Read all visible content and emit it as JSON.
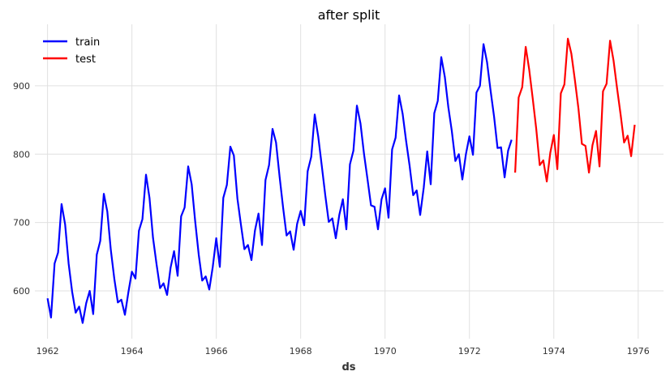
{
  "chart_data": {
    "type": "line",
    "title": "after split",
    "xlabel": "ds",
    "ylabel": "",
    "xlim": [
      1961.7,
      1976.6
    ],
    "ylim": [
      530,
      990
    ],
    "x_ticks": [
      1962,
      1964,
      1966,
      1968,
      1970,
      1972,
      1974,
      1976
    ],
    "x_tick_labels": [
      "1962",
      "1964",
      "1966",
      "1968",
      "1970",
      "1972",
      "1974",
      "1976"
    ],
    "y_ticks": [
      600,
      700,
      800,
      900
    ],
    "y_tick_labels": [
      "600",
      "700",
      "800",
      "900"
    ],
    "grid": true,
    "legend": "top-left",
    "series": [
      {
        "name": "train",
        "color": "#0000ff",
        "start": 1962,
        "step": 0.08333,
        "values": [
          589,
          561,
          640,
          656,
          727,
          697,
          640,
          599,
          568,
          577,
          553,
          582,
          600,
          566,
          653,
          673,
          742,
          716,
          660,
          617,
          583,
          587,
          565,
          598,
          628,
          618,
          688,
          705,
          770,
          736,
          678,
          639,
          604,
          611,
          594,
          634,
          658,
          622,
          709,
          722,
          782,
          756,
          702,
          653,
          615,
          621,
          602,
          635,
          677,
          635,
          736,
          755,
          811,
          798,
          735,
          697,
          661,
          667,
          645,
          688,
          713,
          667,
          762,
          784,
          837,
          817,
          767,
          722,
          681,
          687,
          660,
          698,
          717,
          696,
          775,
          796,
          858,
          826,
          783,
          740,
          701,
          706,
          677,
          711,
          734,
          690,
          785,
          805,
          871,
          845,
          801,
          764,
          725,
          723,
          690,
          734,
          750,
          707,
          807,
          824,
          886,
          859,
          819,
          783,
          740,
          747,
          711,
          751,
          804,
          756,
          860,
          878,
          942,
          913,
          869,
          834,
          790,
          800,
          763,
          800,
          826,
          799,
          890,
          900,
          961,
          935,
          894,
          855,
          809,
          810,
          766,
          805,
          821
        ]
      },
      {
        "name": "test",
        "color": "#ff0000",
        "start": 1973.08333,
        "step": 0.08333,
        "values": [
          773,
          883,
          898,
          957,
          924,
          881,
          837,
          784,
          791,
          760,
          802,
          828,
          778,
          889,
          902,
          969,
          947,
          908,
          867,
          815,
          812,
          773,
          813,
          834,
          782,
          892,
          903,
          966,
          937,
          896,
          858,
          817,
          827,
          797,
          843
        ]
      }
    ]
  }
}
